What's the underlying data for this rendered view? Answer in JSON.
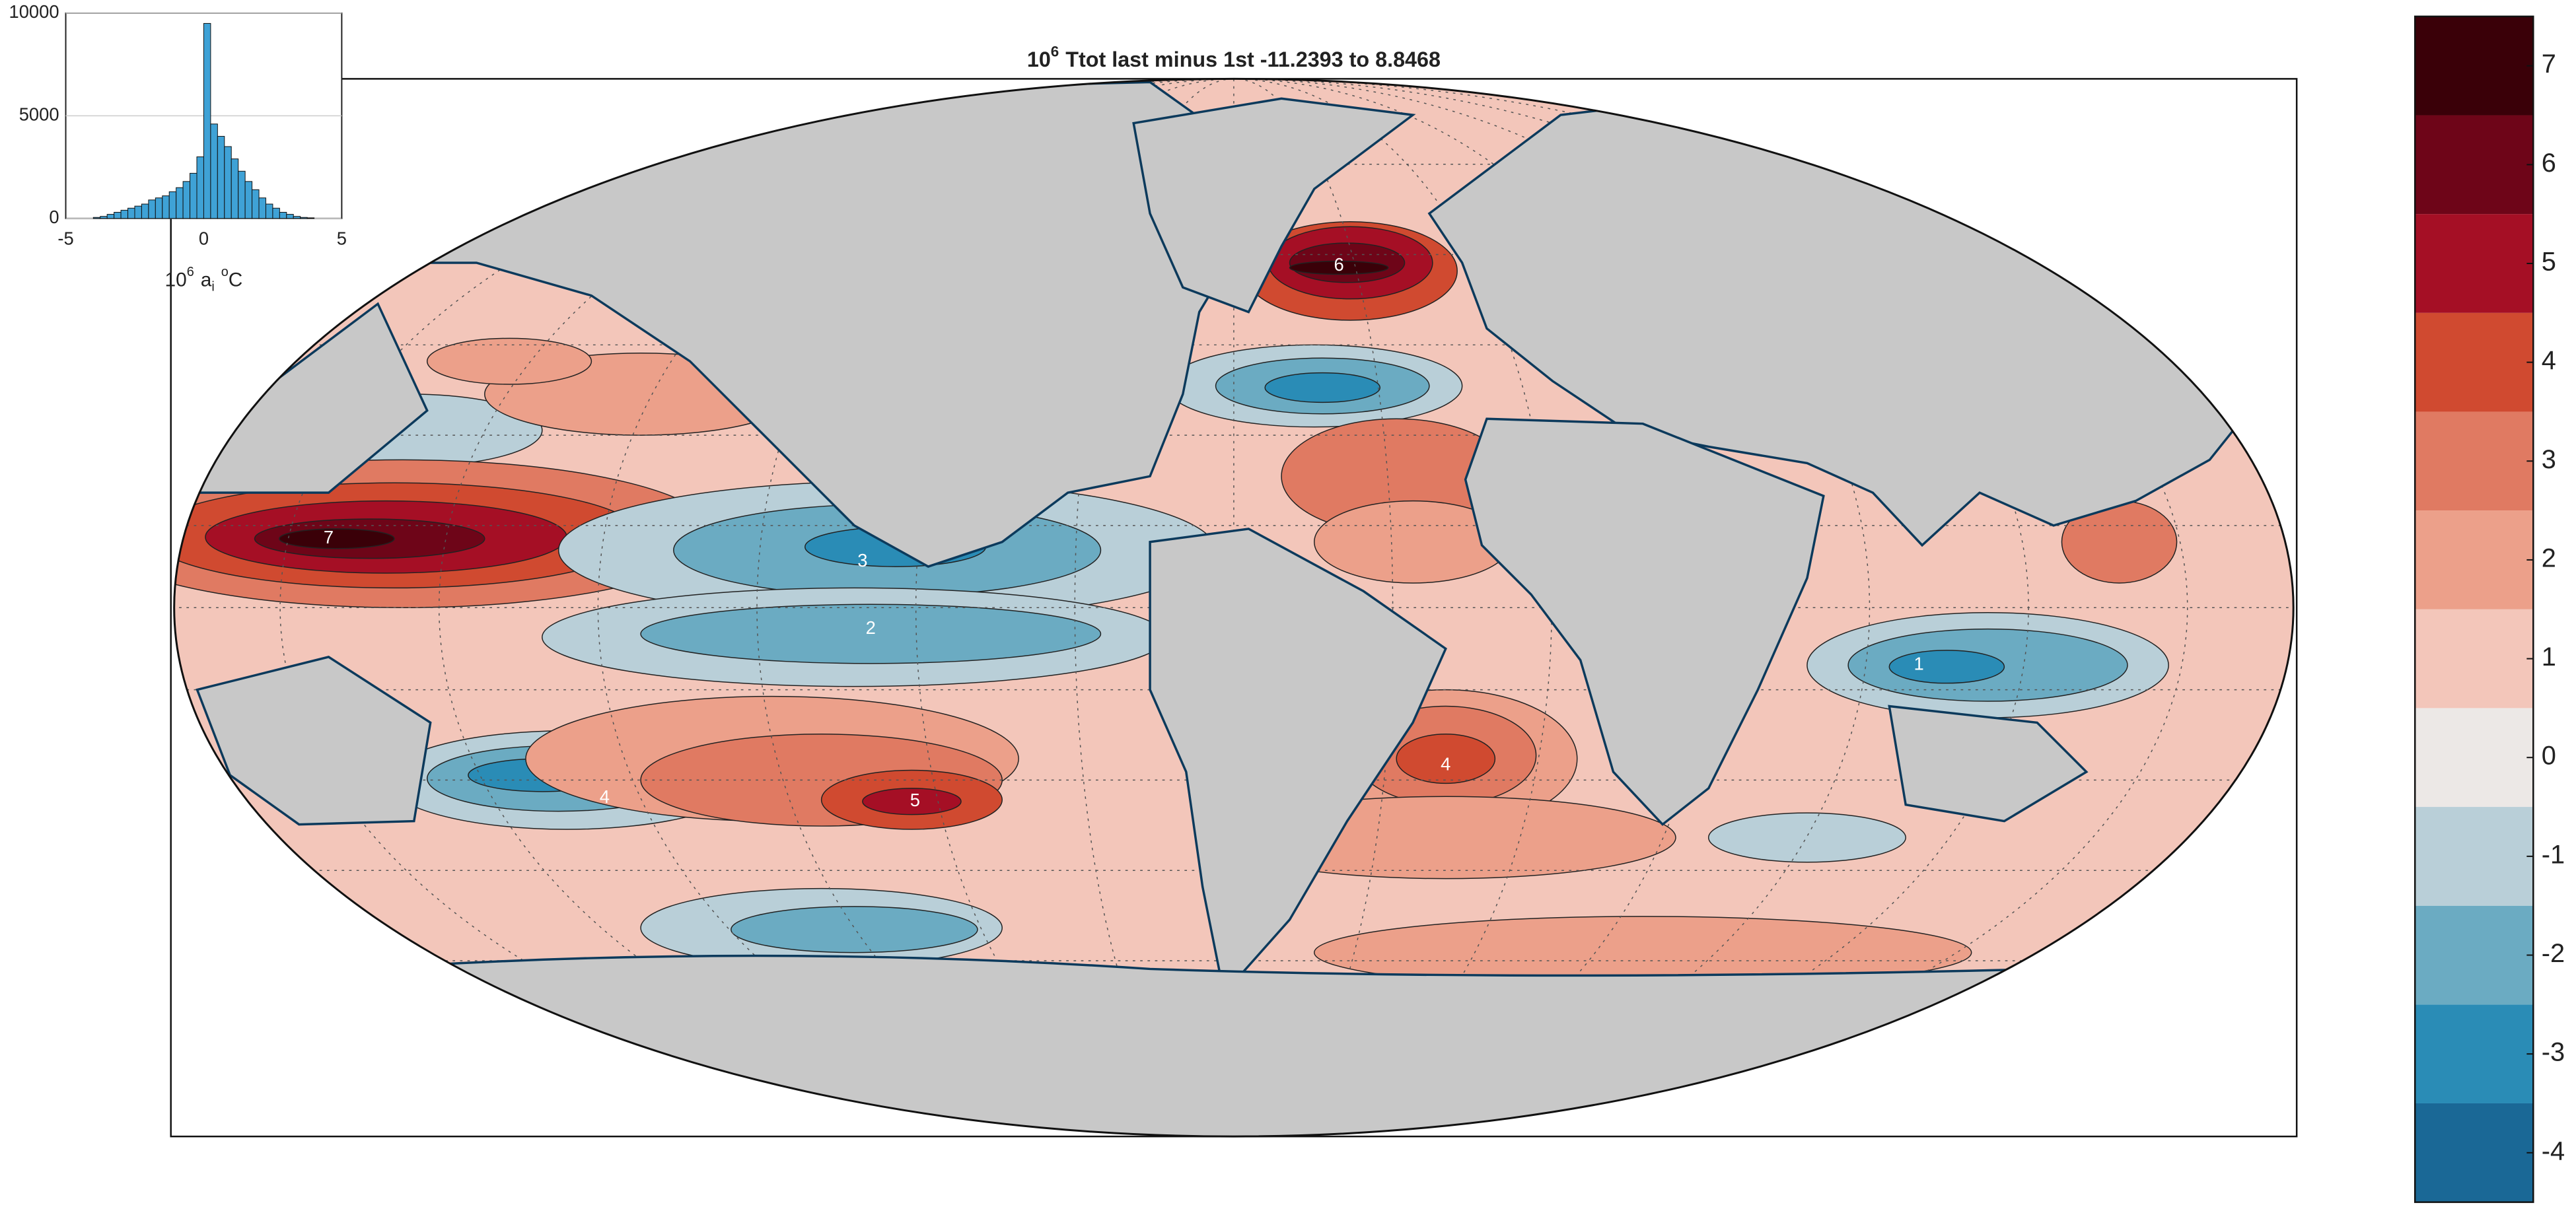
{
  "chart_data": {
    "type": "histogram",
    "bins": [
      -4,
      -3.75,
      -3.5,
      -3.25,
      -3,
      -2.75,
      -2.5,
      -2.25,
      -2,
      -1.75,
      -1.5,
      -1.25,
      -1,
      -0.75,
      -0.5,
      -0.25,
      0,
      0.25,
      0.5,
      0.75,
      1,
      1.25,
      1.5,
      1.75,
      2,
      2.25,
      2.5,
      2.75,
      3,
      3.25,
      3.5,
      3.75,
      4
    ],
    "values": [
      50,
      100,
      200,
      300,
      400,
      500,
      600,
      700,
      900,
      1000,
      1100,
      1300,
      1500,
      1800,
      2200,
      3000,
      9500,
      4600,
      4000,
      3500,
      2900,
      2300,
      1800,
      1400,
      1000,
      700,
      500,
      300,
      200,
      100,
      50,
      30
    ],
    "color": "#3fa2d6",
    "xlim": [
      -5,
      5
    ],
    "ylim": [
      0,
      10000
    ],
    "xticks": [
      -5,
      0,
      5
    ],
    "yticks": [
      0,
      5000,
      10000
    ],
    "grid": true,
    "xlabel": {
      "base": "10",
      "exp": "6",
      "var": "a",
      "sub": "i",
      "deg": "o",
      "unit": "C"
    }
  },
  "map": {
    "title_base": "10",
    "title_exp": "6",
    "title_rest": "Ttot last minus 1st -11.2393 to 8.8468",
    "land_color": "#c8c8c8",
    "contour_labels": [
      7,
      3,
      2,
      4,
      5,
      4,
      6,
      1
    ]
  },
  "colorbar": {
    "ylim": [
      -4.5,
      7.5
    ],
    "ticks": [
      -4,
      -3,
      -2,
      -1,
      0,
      1,
      2,
      3,
      4,
      5,
      6,
      7
    ],
    "colors": [
      "#1a6896",
      "#2a8cb6",
      "#6babc2",
      "#b9cfd8",
      "#ece8e6",
      "#f3c6ba",
      "#eca08a",
      "#e07a62",
      "#d04a30",
      "#a50f25",
      "#6e0518",
      "#3a0008"
    ]
  }
}
